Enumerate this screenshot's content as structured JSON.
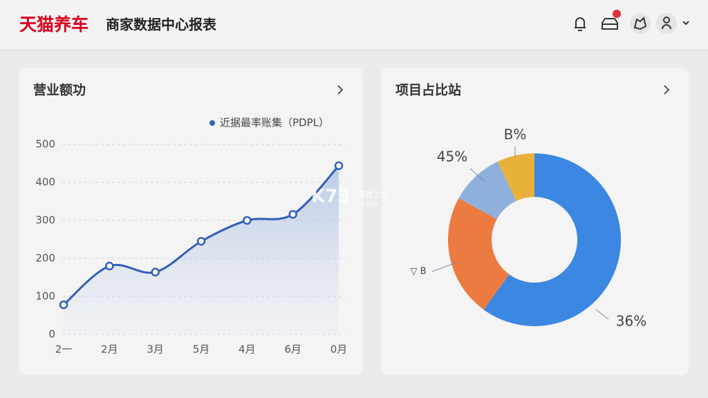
{
  "header": {
    "brand": "天猫养车",
    "title": "商家数据中心报表"
  },
  "watermark": {
    "logo": "K73",
    "text": "游戏之家",
    "domain": ".com"
  },
  "chart_data": [
    {
      "type": "line",
      "title": "营业额功",
      "categories": [
        "2一",
        "2月",
        "3月",
        "5月",
        "4月",
        "6月",
        "0月"
      ],
      "series": [
        {
          "name": "近据最率账集（PDPL）",
          "color": "#2f5fb8",
          "values": [
            78,
            180,
            164,
            245,
            300,
            316,
            444
          ]
        }
      ],
      "ylim": [
        0,
        500
      ],
      "yticks": [
        0,
        100,
        200,
        300,
        400,
        500
      ],
      "grid": true
    },
    {
      "type": "donut",
      "title": "项目占比站",
      "values": [
        60,
        23,
        10,
        7
      ],
      "colors": [
        "#3b87e2",
        "#ec7b42",
        "#8fb0dc",
        "#e8b23a"
      ],
      "annotations": [
        "36%",
        "▽ B",
        "45%",
        "B%"
      ]
    }
  ]
}
